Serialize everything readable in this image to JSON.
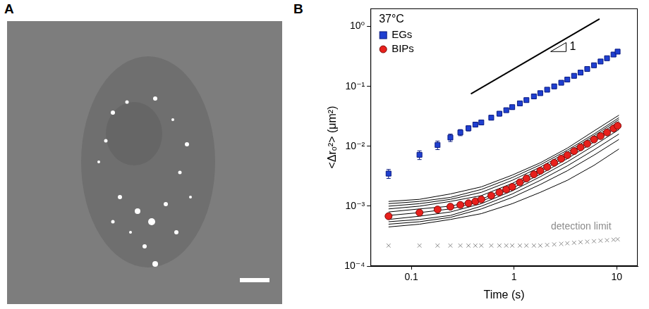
{
  "panel_labels": [
    "A",
    "B"
  ],
  "chart_data": {
    "type": "scatter",
    "x_label": "Time (s)",
    "y_label": "<Δrₒ²> (μm²)",
    "log": true,
    "grid": false,
    "legend": "upper left",
    "legend_title": "37°C",
    "xlim": [
      0.04,
      16
    ],
    "xticks": [
      0.1,
      1,
      10
    ],
    "ylim": [
      0.0001,
      2
    ],
    "yticks": [
      {
        "value": 0.0001,
        "label": "10⁻⁴"
      },
      {
        "value": 0.001,
        "label": "10⁻³"
      },
      {
        "value": 0.01,
        "label": "10⁻²"
      },
      {
        "value": 0.1,
        "label": "10⁻¹"
      },
      {
        "value": 1,
        "label": "10⁰"
      }
    ],
    "series": [
      {
        "name": "EGs",
        "color": "#1f3fd0",
        "marker": "square",
        "line_style": "none",
        "x": [
          0.06,
          0.12,
          0.18,
          0.24,
          0.3,
          0.36,
          0.42,
          0.48,
          0.6,
          0.72,
          0.84,
          0.96,
          1.14,
          1.32,
          1.56,
          1.8,
          2.1,
          2.46,
          2.88,
          3.3,
          3.84,
          4.44,
          5.16,
          6.0,
          6.96,
          8.04,
          9.3,
          10.2
        ],
        "values": [
          0.0035,
          0.0072,
          0.0105,
          0.014,
          0.017,
          0.02,
          0.023,
          0.025,
          0.03,
          0.035,
          0.04,
          0.045,
          0.052,
          0.059,
          0.068,
          0.077,
          0.088,
          0.1,
          0.115,
          0.13,
          0.15,
          0.17,
          0.195,
          0.225,
          0.26,
          0.295,
          0.34,
          0.38
        ],
        "errors": [
          0.0006,
          0.0012,
          0.0017,
          0.002,
          0.002,
          0.002,
          0.002,
          0.002,
          0.0025,
          0.003,
          0.003,
          0.0035,
          0.004,
          0.0045,
          0.005,
          0.006,
          0.007,
          0.008,
          0.009,
          0.01,
          0.012,
          0.013,
          0.015,
          0.017,
          0.02,
          0.022,
          0.026,
          0.03
        ]
      },
      {
        "name": "BIPs",
        "color": "#e8201c",
        "marker": "circle",
        "line_style": "none",
        "x": [
          0.06,
          0.12,
          0.18,
          0.24,
          0.3,
          0.36,
          0.42,
          0.48,
          0.6,
          0.72,
          0.84,
          0.96,
          1.14,
          1.32,
          1.56,
          1.8,
          2.1,
          2.46,
          2.88,
          3.3,
          3.84,
          4.44,
          5.16,
          6.0,
          6.96,
          8.04,
          9.3,
          10.2
        ],
        "values": [
          0.00068,
          0.00078,
          0.00088,
          0.00098,
          0.00105,
          0.00112,
          0.0012,
          0.0013,
          0.0015,
          0.0017,
          0.0019,
          0.0021,
          0.0025,
          0.0029,
          0.0034,
          0.0039,
          0.0045,
          0.0053,
          0.0062,
          0.0071,
          0.0083,
          0.0096,
          0.011,
          0.013,
          0.0148,
          0.017,
          0.0198,
          0.022
        ]
      },
      {
        "color": "#000000",
        "marker": "none",
        "line_style": "solid",
        "x": [
          0.06,
          0.12,
          0.24,
          0.48,
          0.96,
          1.8,
          3.3,
          6.0,
          10.5
        ],
        "values": [
          0.00045,
          0.0005,
          0.0006,
          0.00075,
          0.0011,
          0.0017,
          0.0027,
          0.0048,
          0.009
        ]
      },
      {
        "color": "#000000",
        "marker": "none",
        "line_style": "solid",
        "x": [
          0.06,
          0.12,
          0.24,
          0.48,
          0.96,
          1.8,
          3.3,
          6.0,
          10.5
        ],
        "values": [
          0.0005,
          0.00055,
          0.00065,
          0.0009,
          0.0014,
          0.0023,
          0.0039,
          0.0071,
          0.013
        ]
      },
      {
        "color": "#000000",
        "marker": "none",
        "line_style": "solid",
        "x": [
          0.06,
          0.12,
          0.24,
          0.48,
          0.96,
          1.8,
          3.3,
          6.0,
          10.5
        ],
        "values": [
          0.00055,
          0.0006,
          0.0007,
          0.001,
          0.0016,
          0.0027,
          0.0047,
          0.0087,
          0.016
        ]
      },
      {
        "color": "#000000",
        "marker": "none",
        "line_style": "solid",
        "x": [
          0.06,
          0.12,
          0.24,
          0.48,
          0.96,
          1.8,
          3.3,
          6.0,
          10.5
        ],
        "values": [
          0.0006,
          0.00068,
          0.0008,
          0.0011,
          0.0018,
          0.0031,
          0.0055,
          0.0103,
          0.019
        ]
      },
      {
        "color": "#000000",
        "marker": "none",
        "line_style": "solid",
        "x": [
          0.06,
          0.12,
          0.24,
          0.48,
          0.96,
          1.8,
          3.3,
          6.0,
          10.5
        ],
        "values": [
          0.0007,
          0.00078,
          0.0009,
          0.0012,
          0.002,
          0.0034,
          0.0062,
          0.0118,
          0.022
        ]
      },
      {
        "color": "#000000",
        "marker": "none",
        "line_style": "solid",
        "x": [
          0.06,
          0.12,
          0.24,
          0.48,
          0.96,
          1.8,
          3.3,
          6.0,
          10.5
        ],
        "values": [
          0.0008,
          0.0009,
          0.001,
          0.0013,
          0.0022,
          0.0038,
          0.0068,
          0.013,
          0.024
        ]
      },
      {
        "color": "#000000",
        "marker": "none",
        "line_style": "solid",
        "x": [
          0.06,
          0.12,
          0.24,
          0.48,
          0.96,
          1.8,
          3.3,
          6.0,
          10.5
        ],
        "values": [
          0.0009,
          0.001,
          0.0012,
          0.0015,
          0.0024,
          0.0041,
          0.0074,
          0.014,
          0.026
        ]
      },
      {
        "color": "#000000",
        "marker": "none",
        "line_style": "solid",
        "x": [
          0.06,
          0.12,
          0.24,
          0.48,
          0.96,
          1.8,
          3.3,
          6.0,
          10.5
        ],
        "values": [
          0.001,
          0.0011,
          0.0013,
          0.0017,
          0.0027,
          0.0045,
          0.008,
          0.015,
          0.028
        ]
      },
      {
        "color": "#000000",
        "marker": "none",
        "line_style": "solid",
        "x": [
          0.06,
          0.12,
          0.24,
          0.48,
          0.96,
          1.8,
          3.3,
          6.0,
          10.5
        ],
        "values": [
          0.0011,
          0.0012,
          0.0014,
          0.0019,
          0.003,
          0.0049,
          0.0086,
          0.016,
          0.03
        ]
      },
      {
        "color": "#000000",
        "marker": "none",
        "line_style": "solid",
        "x": [
          0.06,
          0.12,
          0.24,
          0.48,
          0.96,
          1.8,
          3.3,
          6.0,
          10.5
        ],
        "values": [
          0.0012,
          0.0013,
          0.0016,
          0.0021,
          0.0033,
          0.0053,
          0.0093,
          0.018,
          0.033
        ]
      },
      {
        "color": "#8c8c8c",
        "marker": "cross",
        "line_style": "none",
        "x": [
          0.06,
          0.12,
          0.18,
          0.24,
          0.3,
          0.36,
          0.42,
          0.48,
          0.6,
          0.72,
          0.84,
          0.96,
          1.14,
          1.32,
          1.56,
          1.8,
          2.1,
          2.46,
          2.88,
          3.3,
          3.84,
          4.44,
          5.16,
          6.0,
          6.96,
          8.04,
          9.3,
          10.2
        ],
        "values": [
          0.00022,
          0.00022,
          0.00022,
          0.00022,
          0.00022,
          0.00022,
          0.00022,
          0.00022,
          0.00022,
          0.00022,
          0.00022,
          0.00022,
          0.00022,
          0.00022,
          0.00022,
          0.00022,
          0.000225,
          0.00023,
          0.000235,
          0.00024,
          0.000245,
          0.00025,
          0.000255,
          0.00026,
          0.000265,
          0.00027,
          0.000275,
          0.00028
        ]
      }
    ],
    "slope_line": {
      "x": [
        0.38,
        6.8
      ],
      "values": [
        0.075,
        1.34
      ],
      "label": "1"
    },
    "annotations": [
      {
        "text": "detection limit",
        "x": 4.5,
        "y": 0.00045,
        "color": "#8c8c8c"
      }
    ]
  }
}
